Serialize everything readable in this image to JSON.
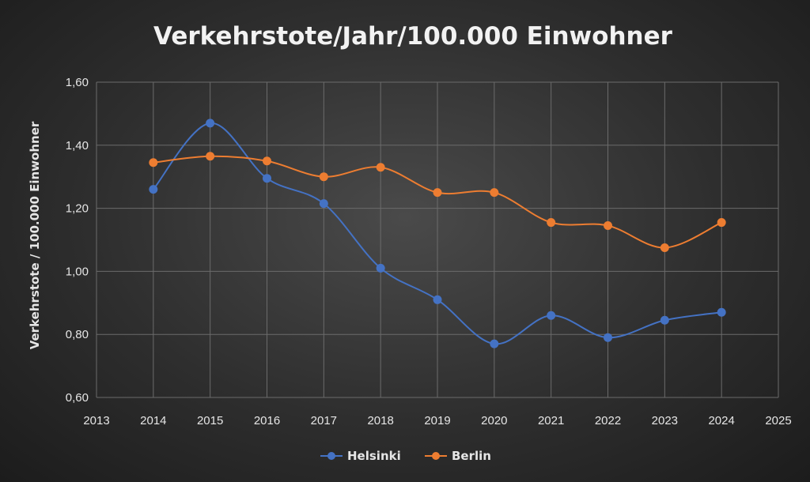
{
  "chart_data": {
    "type": "line",
    "title": "Verkehrstote/Jahr/100.000 Einwohner",
    "xlabel": "",
    "ylabel": "Verkehrstote  / 100.000 Einwohner",
    "xlim": [
      2013,
      2025
    ],
    "ylim": [
      0.6,
      1.6
    ],
    "x_ticks": [
      "2013",
      "2014",
      "2015",
      "2016",
      "2017",
      "2018",
      "2019",
      "2020",
      "2021",
      "2022",
      "2023",
      "2024",
      "2025"
    ],
    "y_ticks": [
      "0,60",
      "0,80",
      "1,00",
      "1,20",
      "1,40",
      "1,60"
    ],
    "grid": true,
    "legend_position": "bottom",
    "x": [
      2014,
      2015,
      2016,
      2017,
      2018,
      2019,
      2020,
      2021,
      2022,
      2023,
      2024
    ],
    "series": [
      {
        "name": "Helsinki",
        "color": "#4472c4",
        "values": [
          1.26,
          1.47,
          1.295,
          1.215,
          1.01,
          0.91,
          0.77,
          0.86,
          0.79,
          0.845,
          0.87
        ]
      },
      {
        "name": "Berlin",
        "color": "#ed7d31",
        "values": [
          1.345,
          1.365,
          1.35,
          1.3,
          1.33,
          1.25,
          1.25,
          1.155,
          1.145,
          1.075,
          1.155
        ]
      }
    ]
  }
}
